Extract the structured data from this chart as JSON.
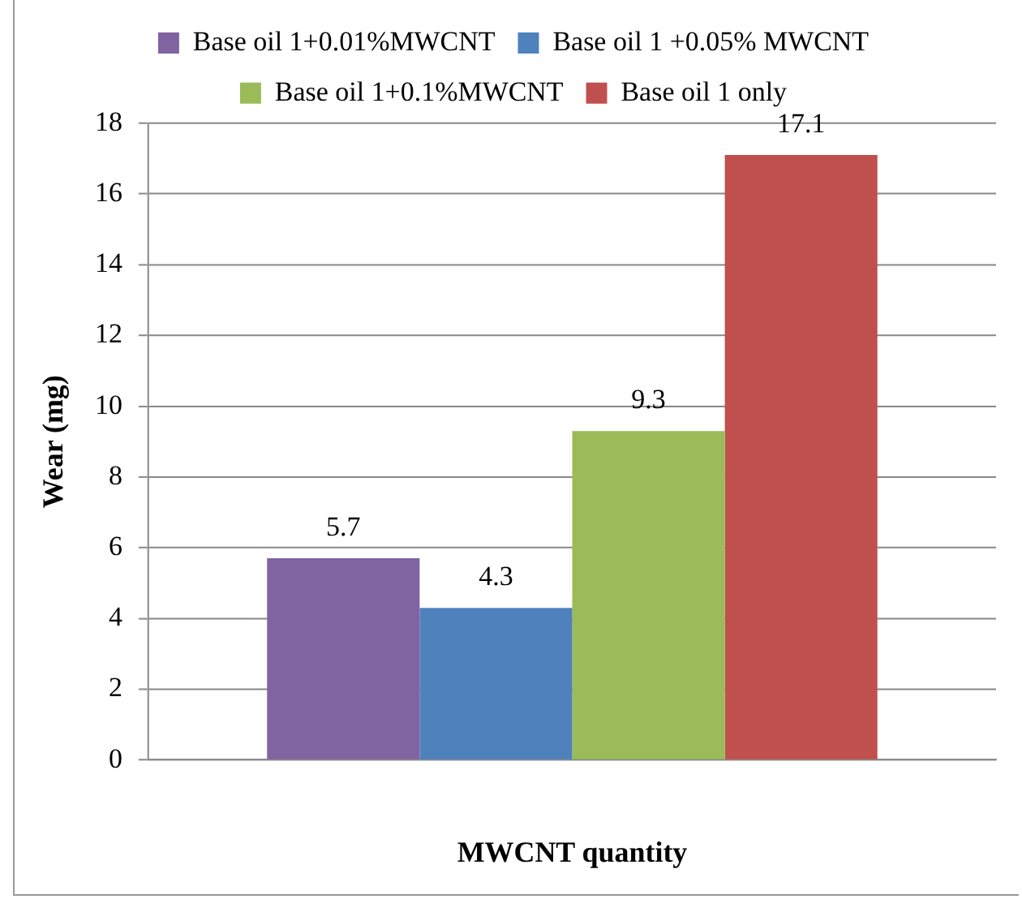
{
  "chart_data": {
    "type": "bar",
    "xlabel": "MWCNT quantity",
    "ylabel": "Wear (mg)",
    "categories": [
      null
    ],
    "series": [
      {
        "name": "Base oil 1+0.01%MWCNT",
        "color": "#8064a2",
        "values": [
          5.7
        ]
      },
      {
        "name": "Base oil 1 +0.05% MWCNT",
        "color": "#4f81bd",
        "values": [
          4.3
        ]
      },
      {
        "name": "Base oil 1+0.1%MWCNT",
        "color": "#9bbb59",
        "values": [
          9.3
        ]
      },
      {
        "name": "Base oil 1 only",
        "color": "#c0504d",
        "values": [
          17.1
        ]
      }
    ],
    "ylim": [
      0,
      18
    ],
    "yticks": [
      0,
      2,
      4,
      6,
      8,
      10,
      12,
      14,
      16,
      18
    ],
    "grid": "y",
    "legend": "top",
    "data_labels": true
  }
}
